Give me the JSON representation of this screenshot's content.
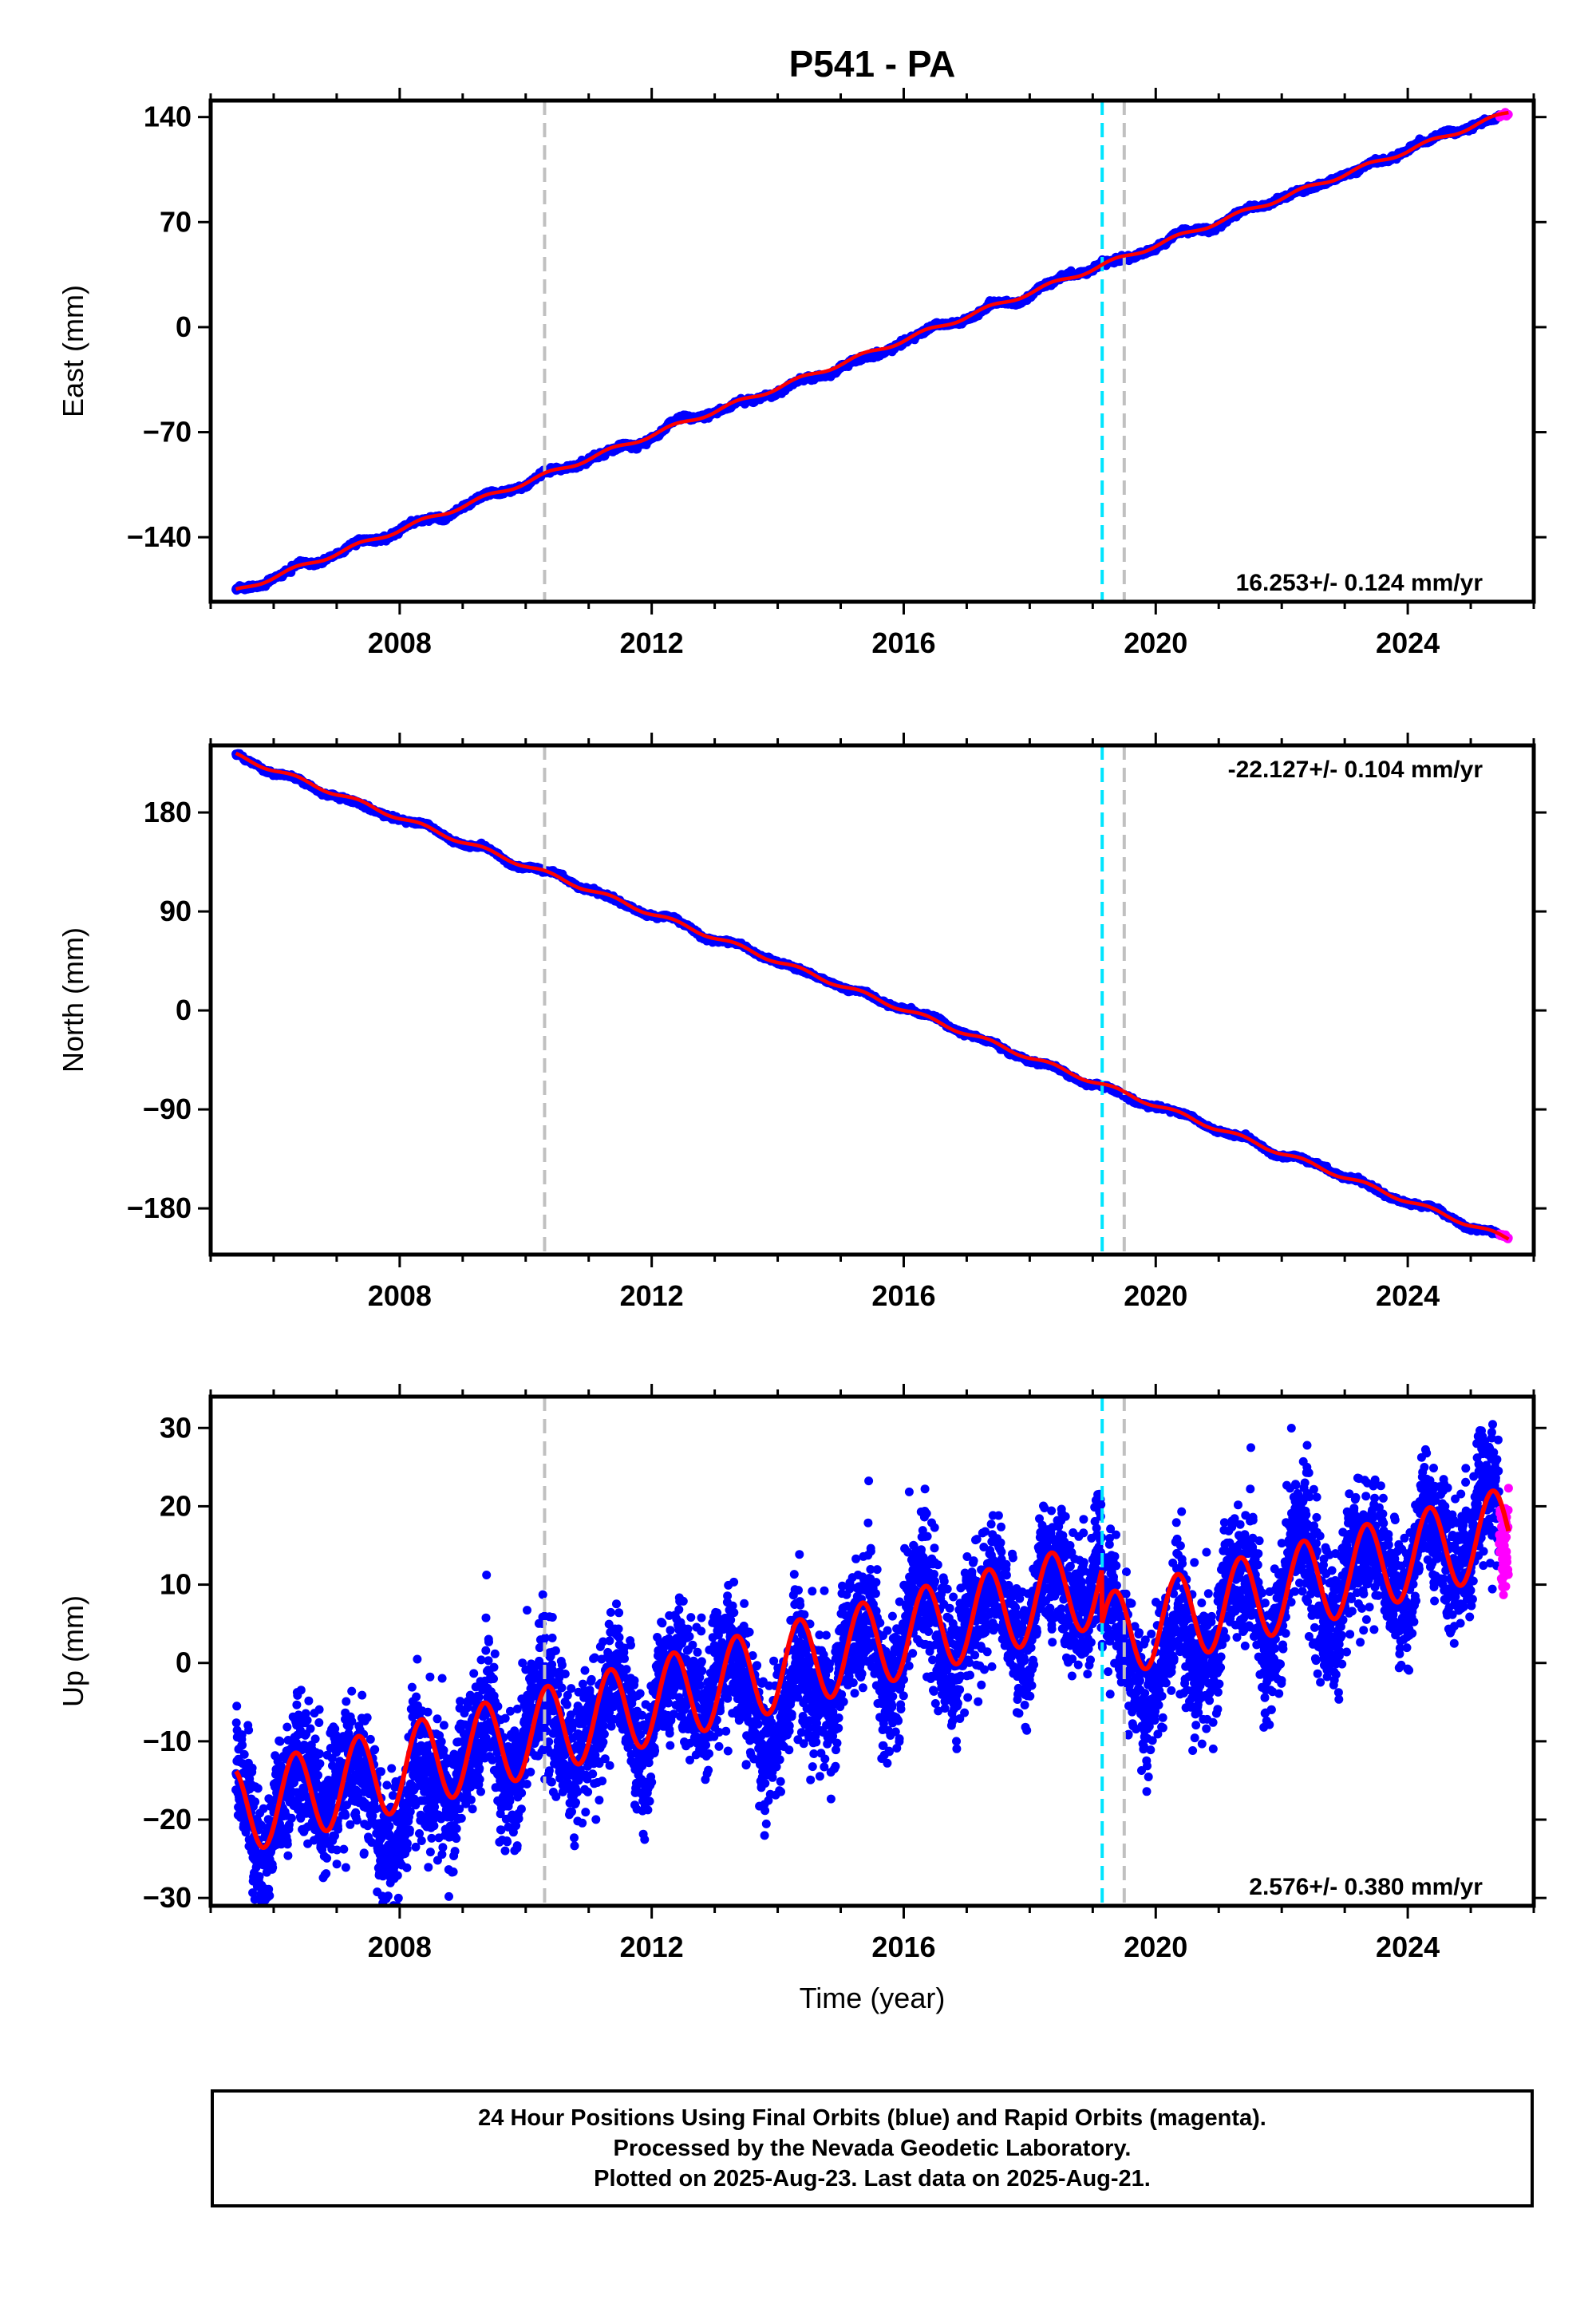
{
  "title": "P541 - PA",
  "xlabel": "Time (year)",
  "colors": {
    "final": "#0000ff",
    "rapid": "#ff00ff",
    "model": "#ff0000",
    "equipment": "#00e5ff",
    "offset": "#c0c0c0",
    "frame": "#000000"
  },
  "event_lines": [
    {
      "x": 2010.3,
      "color": "#c0c0c0"
    },
    {
      "x": 2019.15,
      "color": "#00e5ff"
    },
    {
      "x": 2019.5,
      "color": "#c0c0c0"
    }
  ],
  "caption": [
    "24 Hour Positions Using Final Orbits (blue) and Rapid Orbits (magenta).",
    "Processed by the Nevada Geodetic Laboratory.",
    "Plotted on 2025-Aug-23. Last data on 2025-Aug-21."
  ],
  "chart_data": [
    {
      "type": "scatter",
      "name": "east",
      "ylabel": "East (mm)",
      "rate": "16.253+/- 0.124 mm/yr",
      "rate_position": "bottom-right",
      "xlim": [
        2005.0,
        2026.0
      ],
      "ylim": [
        -183,
        151
      ],
      "xticks": [
        2008,
        2012,
        2016,
        2020,
        2024
      ],
      "yticks": [
        -140,
        -70,
        0,
        70,
        140
      ],
      "x_start": 2005.4,
      "x_end": 2025.6,
      "rapid_start": 2025.45,
      "offset_at": 2005.4,
      "start_value": -176,
      "end_value": 143,
      "seasonal_amplitude": 1.5,
      "noise": 2.0,
      "steps": []
    },
    {
      "type": "scatter",
      "name": "north",
      "ylabel": "North (mm)",
      "rate": "-22.127+/- 0.104 mm/yr",
      "rate_position": "top-right",
      "xlim": [
        2005.0,
        2026.0
      ],
      "ylim": [
        -222,
        241
      ],
      "xticks": [
        2008,
        2012,
        2016,
        2020,
        2024
      ],
      "yticks": [
        -180,
        -90,
        0,
        90,
        180
      ],
      "x_start": 2005.4,
      "x_end": 2025.6,
      "rapid_start": 2025.45,
      "start_value": 232,
      "end_value": -208,
      "seasonal_amplitude": 2.0,
      "noise": 2.0,
      "steps": []
    },
    {
      "type": "scatter",
      "name": "up",
      "ylabel": "Up (mm)",
      "rate": "2.576+/- 0.380 mm/yr",
      "rate_position": "bottom-right",
      "xlim": [
        2005.0,
        2026.0
      ],
      "ylim": [
        -31,
        34
      ],
      "xticks": [
        2008,
        2012,
        2016,
        2020,
        2024
      ],
      "yticks": [
        -30,
        -20,
        -10,
        0,
        10,
        20,
        30
      ],
      "x_start": 2005.4,
      "x_end": 2025.6,
      "rapid_start": 2025.45,
      "start_value": -19,
      "end_value": 17,
      "seasonal_amplitude": 5.5,
      "noise": 4.0,
      "steps": [
        {
          "x": 2019.15,
          "size": -7
        }
      ]
    }
  ]
}
